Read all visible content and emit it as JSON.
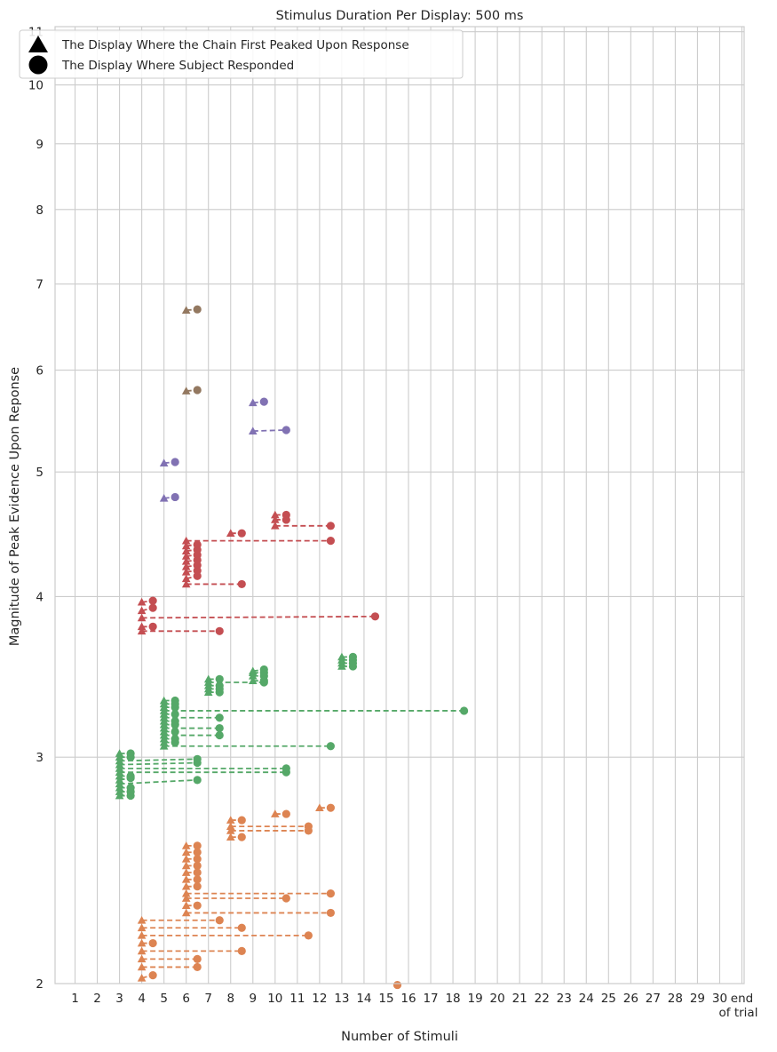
{
  "chart_data": {
    "type": "scatter",
    "title": "Stimulus Duration Per Display: 500 ms",
    "xlabel": "Number of Stimuli",
    "ylabel": "Magnitude of Peak Evidence Upon Reponse",
    "y_scale": "log",
    "xlim": [
      0.1,
      31.1
    ],
    "ylim": [
      2,
      11.1
    ],
    "x_ticks": [
      {
        "value": 1,
        "label": "1"
      },
      {
        "value": 2,
        "label": "2"
      },
      {
        "value": 3,
        "label": "3"
      },
      {
        "value": 4,
        "label": "4"
      },
      {
        "value": 5,
        "label": "5"
      },
      {
        "value": 6,
        "label": "6"
      },
      {
        "value": 7,
        "label": "7"
      },
      {
        "value": 8,
        "label": "8"
      },
      {
        "value": 9,
        "label": "9"
      },
      {
        "value": 10,
        "label": "10"
      },
      {
        "value": 11,
        "label": "11"
      },
      {
        "value": 12,
        "label": "12"
      },
      {
        "value": 13,
        "label": "13"
      },
      {
        "value": 14,
        "label": "14"
      },
      {
        "value": 15,
        "label": "15"
      },
      {
        "value": 16,
        "label": "16"
      },
      {
        "value": 17,
        "label": "17"
      },
      {
        "value": 18,
        "label": "18"
      },
      {
        "value": 19,
        "label": "19"
      },
      {
        "value": 20,
        "label": "20"
      },
      {
        "value": 21,
        "label": "21"
      },
      {
        "value": 22,
        "label": "22"
      },
      {
        "value": 23,
        "label": "23"
      },
      {
        "value": 24,
        "label": "24"
      },
      {
        "value": 25,
        "label": "25"
      },
      {
        "value": 26,
        "label": "26"
      },
      {
        "value": 27,
        "label": "27"
      },
      {
        "value": 28,
        "label": "28"
      },
      {
        "value": 29,
        "label": "29"
      },
      {
        "value": 30,
        "label": "30"
      },
      {
        "value": 31,
        "label": "end\nof trial"
      }
    ],
    "y_ticks": [
      2,
      3,
      4,
      5,
      6,
      7,
      8,
      9,
      10,
      11
    ],
    "grid": true,
    "legend": {
      "placement": "top-left",
      "entries": [
        {
          "marker": "triangle",
          "label": "The Display Where the Chain First Peaked Upon Response"
        },
        {
          "marker": "circle",
          "label": "The Display Where Subject Responded"
        }
      ]
    },
    "series": [
      {
        "color": "#dd8452",
        "segments": [
          [
            4,
            2.02,
            4.5,
            2.03
          ],
          [
            4,
            2.06,
            6.5,
            2.06
          ],
          [
            4,
            2.09,
            6.5,
            2.09
          ],
          [
            4,
            2.12,
            8.5,
            2.12
          ],
          [
            4,
            2.15,
            4.5,
            2.15
          ],
          [
            4,
            2.18,
            11.5,
            2.18
          ],
          [
            4,
            2.21,
            8.5,
            2.21
          ],
          [
            4,
            2.24,
            7.5,
            2.24
          ],
          [
            6,
            2.27,
            12.5,
            2.27
          ],
          [
            6,
            2.3,
            6.5,
            2.3
          ],
          [
            6,
            2.33,
            10.5,
            2.33
          ],
          [
            6,
            2.35,
            12.5,
            2.35
          ],
          [
            6,
            2.38,
            6.5,
            2.38
          ],
          [
            6,
            2.41,
            6.5,
            2.41
          ],
          [
            6,
            2.44,
            6.5,
            2.44
          ],
          [
            6,
            2.47,
            6.5,
            2.47
          ],
          [
            6,
            2.5,
            6.5,
            2.5
          ],
          [
            6,
            2.53,
            6.5,
            2.53
          ],
          [
            6,
            2.56,
            6.5,
            2.56
          ],
          [
            8,
            2.6,
            8.5,
            2.6
          ],
          [
            8,
            2.63,
            11.5,
            2.63
          ],
          [
            8,
            2.65,
            11.5,
            2.65
          ],
          [
            8,
            2.68,
            8.5,
            2.68
          ],
          [
            10,
            2.71,
            10.5,
            2.71
          ],
          [
            12,
            2.74,
            12.5,
            2.74
          ]
        ],
        "extra_points": [
          [
            15.5,
            1.995
          ]
        ]
      },
      {
        "color": "#55a868",
        "segments": [
          [
            3,
            2.8,
            3.5,
            2.8
          ],
          [
            3,
            2.82,
            3.5,
            2.82
          ],
          [
            3,
            2.84,
            3.5,
            2.84
          ],
          [
            3,
            2.86,
            6.5,
            2.88
          ],
          [
            3,
            2.88,
            3.5,
            2.89
          ],
          [
            3,
            2.9,
            3.5,
            2.9
          ],
          [
            3,
            2.92,
            10.5,
            2.92
          ],
          [
            3,
            2.94,
            10.5,
            2.94
          ],
          [
            3,
            2.96,
            6.5,
            2.97
          ],
          [
            3,
            2.98,
            6.5,
            2.99
          ],
          [
            3,
            3.0,
            3.5,
            3.0
          ],
          [
            3,
            3.02,
            3.5,
            3.02
          ],
          [
            5,
            3.06,
            12.5,
            3.06
          ],
          [
            5,
            3.08,
            5.5,
            3.08
          ],
          [
            5,
            3.1,
            5.5,
            3.1
          ],
          [
            5,
            3.12,
            7.5,
            3.12
          ],
          [
            5,
            3.14,
            5.5,
            3.14
          ],
          [
            5,
            3.16,
            7.5,
            3.16
          ],
          [
            5,
            3.18,
            5.5,
            3.18
          ],
          [
            5,
            3.2,
            5.5,
            3.2
          ],
          [
            5,
            3.22,
            7.5,
            3.22
          ],
          [
            5,
            3.24,
            5.5,
            3.24
          ],
          [
            5,
            3.26,
            18.5,
            3.26
          ],
          [
            5,
            3.28,
            5.5,
            3.28
          ],
          [
            5,
            3.3,
            5.5,
            3.3
          ],
          [
            5,
            3.32,
            5.5,
            3.32
          ],
          [
            7,
            3.37,
            7.5,
            3.37
          ],
          [
            7,
            3.39,
            7.5,
            3.39
          ],
          [
            7,
            3.41,
            7.5,
            3.41
          ],
          [
            7,
            3.43,
            9.5,
            3.43
          ],
          [
            7,
            3.45,
            7.5,
            3.45
          ],
          [
            9,
            3.44,
            9.5,
            3.44
          ],
          [
            9,
            3.47,
            9.5,
            3.47
          ],
          [
            9,
            3.49,
            9.5,
            3.49
          ],
          [
            9,
            3.5,
            9.5,
            3.51
          ],
          [
            13,
            3.53,
            13.5,
            3.53
          ],
          [
            13,
            3.55,
            13.5,
            3.55
          ],
          [
            13,
            3.57,
            13.5,
            3.57
          ],
          [
            13,
            3.59,
            13.5,
            3.59
          ]
        ],
        "extra_points": []
      },
      {
        "color": "#c44e52",
        "segments": [
          [
            4,
            3.76,
            7.5,
            3.76
          ],
          [
            4,
            3.79,
            4.5,
            3.79
          ],
          [
            4,
            3.85,
            14.5,
            3.86
          ],
          [
            4,
            3.9,
            4.5,
            3.92
          ],
          [
            4,
            3.96,
            4.5,
            3.97
          ],
          [
            6,
            4.09,
            8.5,
            4.09
          ],
          [
            6,
            4.13,
            6.5,
            4.15
          ],
          [
            6,
            4.18,
            6.5,
            4.19
          ],
          [
            6,
            4.22,
            6.5,
            4.23
          ],
          [
            6,
            4.26,
            6.5,
            4.27
          ],
          [
            6,
            4.3,
            6.5,
            4.31
          ],
          [
            6,
            4.34,
            6.5,
            4.35
          ],
          [
            6,
            4.38,
            6.5,
            4.39
          ],
          [
            6,
            4.42,
            12.5,
            4.42
          ],
          [
            8,
            4.48,
            8.5,
            4.48
          ],
          [
            10,
            4.54,
            12.5,
            4.54
          ],
          [
            10,
            4.59,
            10.5,
            4.59
          ],
          [
            10,
            4.63,
            10.5,
            4.63
          ]
        ],
        "extra_points": []
      },
      {
        "color": "#8172b3",
        "segments": [
          [
            5,
            4.77,
            5.5,
            4.78
          ],
          [
            5,
            5.08,
            5.5,
            5.09
          ],
          [
            9,
            5.38,
            10.5,
            5.39
          ],
          [
            9,
            5.66,
            9.5,
            5.67
          ]
        ],
        "extra_points": []
      },
      {
        "color": "#937860",
        "segments": [
          [
            6,
            5.78,
            6.5,
            5.79
          ],
          [
            6,
            6.68,
            6.5,
            6.69
          ]
        ],
        "extra_points": []
      }
    ]
  }
}
